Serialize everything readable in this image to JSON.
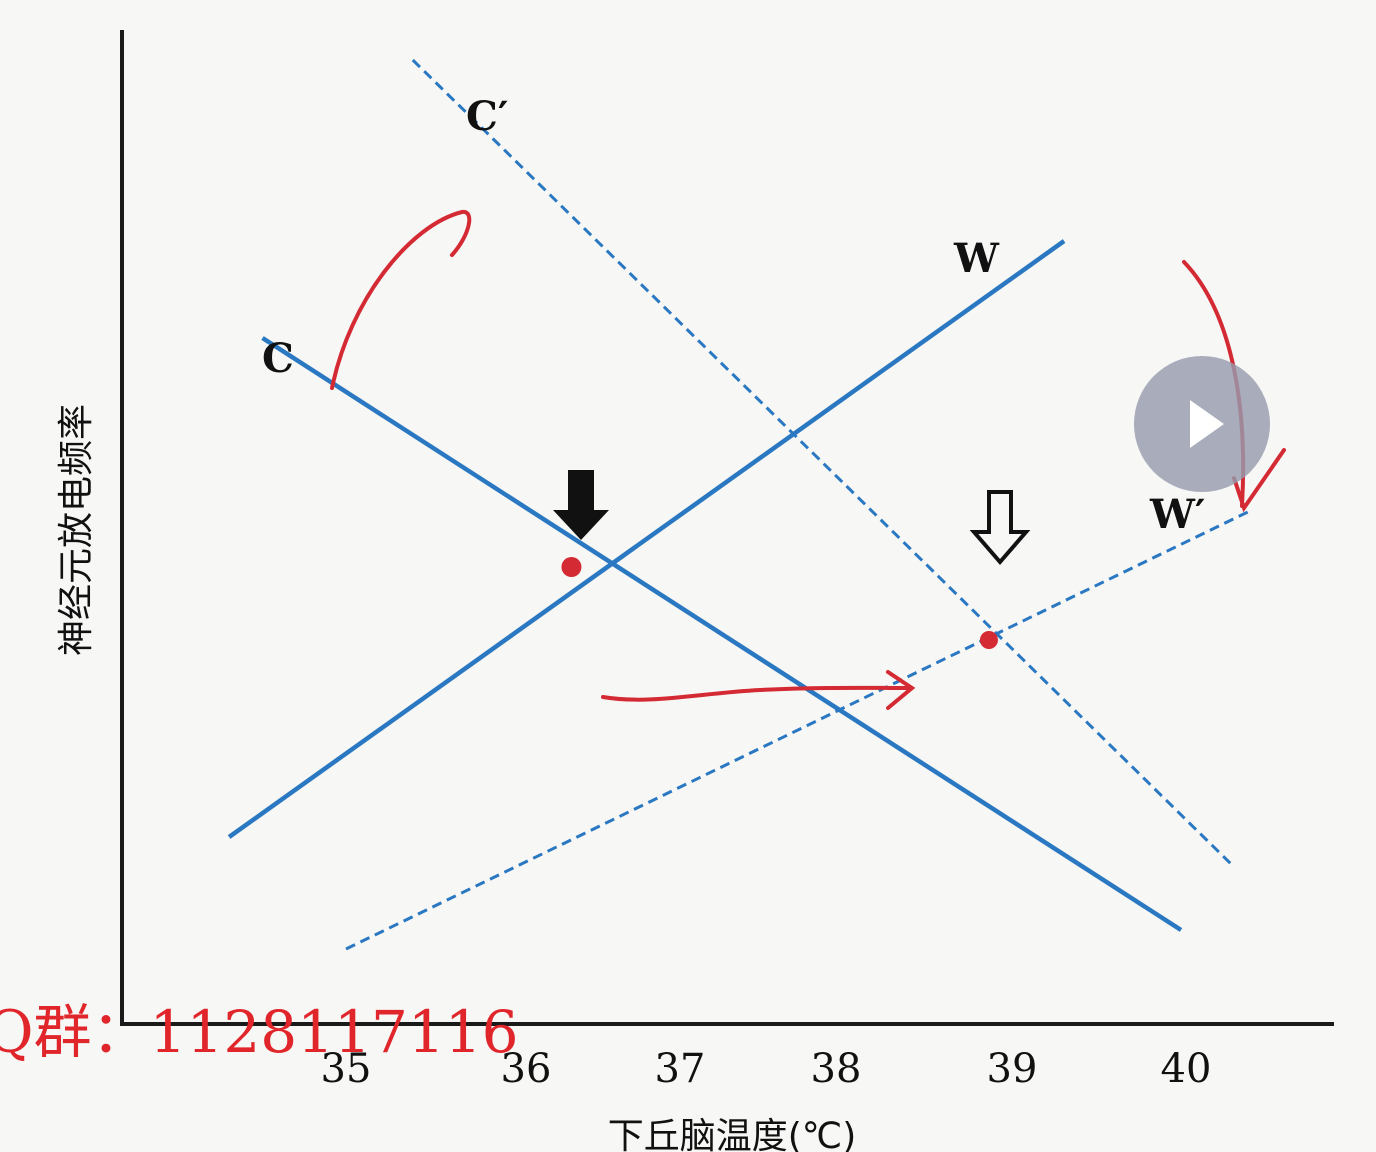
{
  "chart_data": {
    "type": "line",
    "xlabel": "下丘脑温度(℃)",
    "ylabel": "神经元放电频率",
    "xlim": [
      34.2,
      41.0
    ],
    "ylim": [
      0,
      100
    ],
    "x_ticks": [
      "35",
      "36",
      "37",
      "38",
      "39",
      "40"
    ],
    "series": [
      {
        "name": "C",
        "style": "solid",
        "color": "#2a78c2",
        "points": [
          [
            34.5,
            68.2
          ],
          [
            40.0,
            9.0
          ]
        ]
      },
      {
        "name": "W",
        "style": "solid",
        "color": "#2a78c2",
        "points": [
          [
            34.3,
            18.3
          ],
          [
            39.3,
            77.9
          ]
        ]
      },
      {
        "name": "C′",
        "style": "dashed",
        "color": "#2a78c2",
        "points": [
          [
            35.4,
            96.0
          ],
          [
            40.3,
            15.6
          ]
        ]
      },
      {
        "name": "W′",
        "style": "dashed",
        "color": "#2a78c2",
        "points": [
          [
            35.0,
            7.1
          ],
          [
            40.4,
            50.8
          ]
        ]
      }
    ],
    "set_points": [
      {
        "x": 36.35,
        "y": 45.3,
        "color": "#d42a34",
        "arrow": "filled"
      },
      {
        "x": 38.85,
        "y": 38.0,
        "color": "#d42a34",
        "arrow": "hollow"
      }
    ]
  },
  "watermark": {
    "text": "Q群：1128117116",
    "color": "#e0262b"
  },
  "player": {
    "icon": "play-icon"
  }
}
